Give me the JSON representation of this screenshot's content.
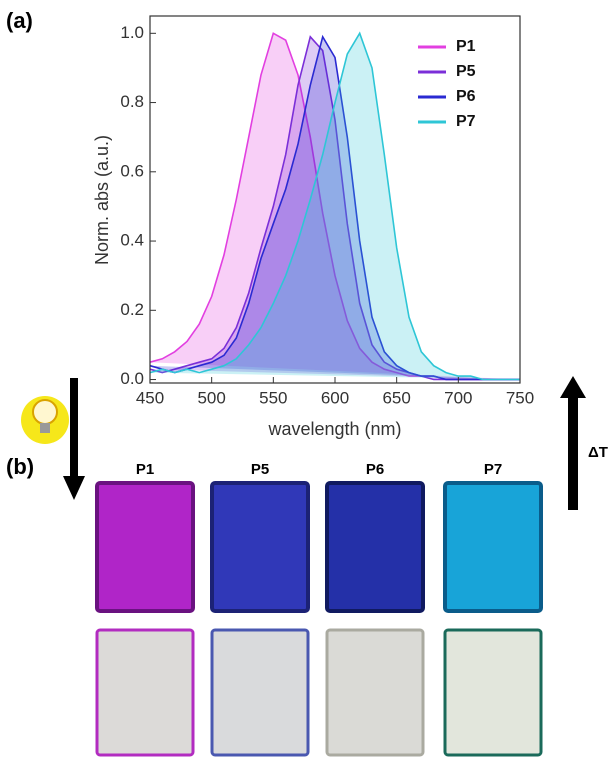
{
  "chart_data": {
    "type": "area",
    "xlabel": "wavelength (nm)",
    "ylabel": "Norm. abs (a.u.)",
    "x": [
      450,
      460,
      470,
      480,
      490,
      500,
      510,
      520,
      530,
      540,
      550,
      560,
      570,
      580,
      590,
      600,
      610,
      620,
      630,
      640,
      650,
      660,
      670,
      680,
      690,
      700,
      710,
      720,
      730,
      740,
      750
    ],
    "series": [
      {
        "name": "P1",
        "color": "#e23fe0",
        "values": [
          0.05,
          0.06,
          0.08,
          0.11,
          0.16,
          0.24,
          0.36,
          0.52,
          0.7,
          0.88,
          1.0,
          0.98,
          0.88,
          0.7,
          0.48,
          0.3,
          0.17,
          0.09,
          0.05,
          0.03,
          0.02,
          0.01,
          0.01,
          0.01,
          0,
          0,
          0,
          0,
          0,
          0,
          0
        ]
      },
      {
        "name": "P5",
        "color": "#7b2fd8",
        "values": [
          0.03,
          0.02,
          0.03,
          0.04,
          0.05,
          0.06,
          0.09,
          0.15,
          0.25,
          0.38,
          0.5,
          0.65,
          0.85,
          0.99,
          0.95,
          0.75,
          0.45,
          0.22,
          0.1,
          0.05,
          0.03,
          0.02,
          0.01,
          0,
          0,
          0,
          0,
          0,
          0,
          0,
          0
        ]
      },
      {
        "name": "P6",
        "color": "#2a2ad2",
        "values": [
          0.04,
          0.03,
          0.02,
          0.03,
          0.04,
          0.05,
          0.07,
          0.12,
          0.22,
          0.35,
          0.45,
          0.55,
          0.68,
          0.85,
          0.99,
          0.93,
          0.7,
          0.4,
          0.18,
          0.08,
          0.04,
          0.02,
          0.01,
          0.01,
          0,
          0,
          0,
          0,
          0,
          0,
          0
        ]
      },
      {
        "name": "P7",
        "color": "#2ec6d6",
        "values": [
          0.02,
          0.03,
          0.02,
          0.03,
          0.02,
          0.03,
          0.04,
          0.06,
          0.1,
          0.15,
          0.22,
          0.3,
          0.4,
          0.52,
          0.65,
          0.8,
          0.94,
          1.0,
          0.9,
          0.65,
          0.38,
          0.18,
          0.08,
          0.04,
          0.02,
          0.01,
          0.01,
          0,
          0,
          0,
          0
        ]
      }
    ],
    "xlim": [
      450,
      750
    ],
    "xticks": [
      450,
      500,
      550,
      600,
      650,
      700,
      750
    ],
    "ylim": [
      -0.01,
      1.05
    ],
    "yticks": [
      {
        "value": 0,
        "label": "0.0"
      },
      0.2,
      0.4,
      0.6,
      0.8,
      {
        "value": 1,
        "label": "1.0"
      }
    ],
    "legend": "top-right"
  },
  "panel_labels": [
    "(a)",
    "(b)"
  ],
  "photos": {
    "labels": [
      "P1",
      "P5",
      "P6",
      "P7"
    ],
    "annotation": "ΔT"
  }
}
